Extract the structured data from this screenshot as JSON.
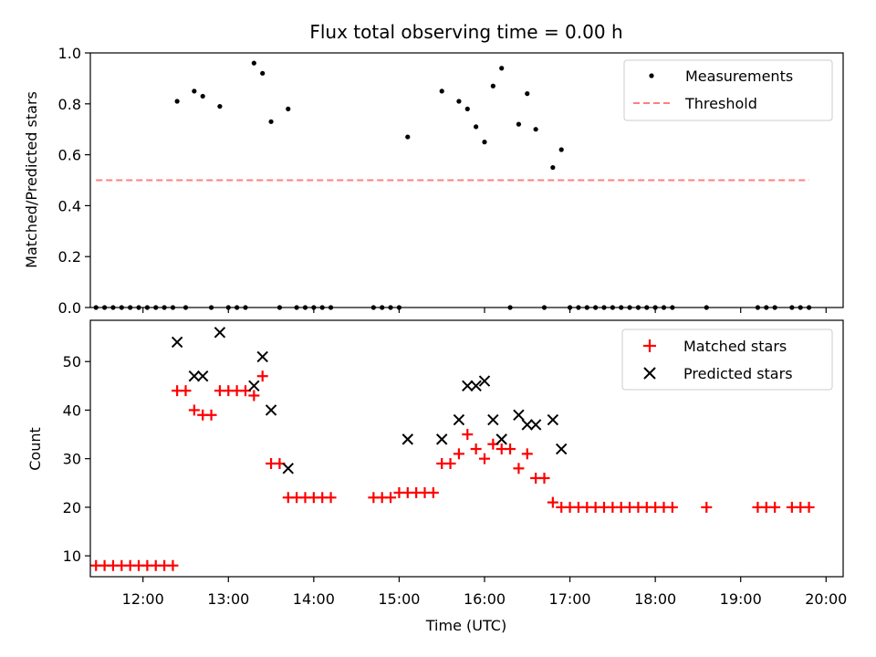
{
  "chart_data": [
    {
      "type": "scatter",
      "title": "Flux total observing time = 0.00 h",
      "xlabel": "",
      "ylabel": "Matched/Predicted stars",
      "xlim": [
        "11:23",
        "20:12"
      ],
      "ylim": [
        0,
        1.0
      ],
      "yticks": [
        0.0,
        0.2,
        0.4,
        0.6,
        0.8,
        1.0
      ],
      "ytick_labels": [
        "0.0",
        "0.2",
        "0.4",
        "0.6",
        "0.8",
        "1.0"
      ],
      "xticks": [
        "12:00",
        "13:00",
        "14:00",
        "15:00",
        "16:00",
        "17:00",
        "18:00",
        "19:00",
        "20:00"
      ],
      "legend_position": "top-right",
      "series": [
        {
          "name": "Measurements",
          "color": "#000000",
          "marker": "dot",
          "points": [
            [
              "11:27",
              0
            ],
            [
              "11:33",
              0
            ],
            [
              "11:39",
              0
            ],
            [
              "11:45",
              0
            ],
            [
              "11:51",
              0
            ],
            [
              "11:57",
              0
            ],
            [
              "12:03",
              0
            ],
            [
              "12:09",
              0
            ],
            [
              "12:15",
              0
            ],
            [
              "12:21",
              0
            ],
            [
              "12:24",
              0.81
            ],
            [
              "12:30",
              0
            ],
            [
              "12:36",
              0.85
            ],
            [
              "12:42",
              0.83
            ],
            [
              "12:48",
              0
            ],
            [
              "12:54",
              0.79
            ],
            [
              "13:00",
              0
            ],
            [
              "13:06",
              0
            ],
            [
              "13:12",
              0
            ],
            [
              "13:18",
              0.96
            ],
            [
              "13:24",
              0.92
            ],
            [
              "13:30",
              0.73
            ],
            [
              "13:36",
              0
            ],
            [
              "13:42",
              0.78
            ],
            [
              "13:48",
              0
            ],
            [
              "13:54",
              0
            ],
            [
              "14:00",
              0
            ],
            [
              "14:06",
              0
            ],
            [
              "14:12",
              0
            ],
            [
              "14:42",
              0
            ],
            [
              "14:48",
              0
            ],
            [
              "14:54",
              0
            ],
            [
              "15:00",
              0
            ],
            [
              "15:06",
              0.67
            ],
            [
              "15:30",
              0.85
            ],
            [
              "15:42",
              0.81
            ],
            [
              "15:48",
              0.78
            ],
            [
              "15:54",
              0.71
            ],
            [
              "16:00",
              0.65
            ],
            [
              "16:06",
              0.87
            ],
            [
              "16:12",
              0.94
            ],
            [
              "16:18",
              0
            ],
            [
              "16:24",
              0.72
            ],
            [
              "16:30",
              0.84
            ],
            [
              "16:36",
              0.7
            ],
            [
              "16:42",
              0
            ],
            [
              "16:48",
              0.55
            ],
            [
              "16:54",
              0.62
            ],
            [
              "17:00",
              0
            ],
            [
              "17:06",
              0
            ],
            [
              "17:12",
              0
            ],
            [
              "17:18",
              0
            ],
            [
              "17:24",
              0
            ],
            [
              "17:30",
              0
            ],
            [
              "17:36",
              0
            ],
            [
              "17:42",
              0
            ],
            [
              "17:48",
              0
            ],
            [
              "17:54",
              0
            ],
            [
              "18:00",
              0
            ],
            [
              "18:06",
              0
            ],
            [
              "18:12",
              0
            ],
            [
              "18:36",
              0
            ],
            [
              "19:12",
              0
            ],
            [
              "19:18",
              0
            ],
            [
              "19:24",
              0
            ],
            [
              "19:36",
              0
            ],
            [
              "19:42",
              0
            ],
            [
              "19:48",
              0
            ]
          ]
        },
        {
          "name": "Threshold",
          "color": "#ff7f7f",
          "line_style": "dashed",
          "points": [
            [
              "11:27",
              0.5
            ],
            [
              "19:48",
              0.5
            ]
          ]
        }
      ]
    },
    {
      "type": "scatter",
      "title": "",
      "xlabel": "Time (UTC)",
      "ylabel": "Count",
      "xlim": [
        "11:23",
        "20:12"
      ],
      "ylim": [
        5.7,
        58.5
      ],
      "yticks": [
        10,
        20,
        30,
        40,
        50
      ],
      "ytick_labels": [
        "10",
        "20",
        "30",
        "40",
        "50"
      ],
      "xticks": [
        "12:00",
        "13:00",
        "14:00",
        "15:00",
        "16:00",
        "17:00",
        "18:00",
        "19:00",
        "20:00"
      ],
      "xtick_labels": [
        "12:00",
        "13:00",
        "14:00",
        "15:00",
        "16:00",
        "17:00",
        "18:00",
        "19:00",
        "20:00"
      ],
      "legend_position": "top-right",
      "series": [
        {
          "name": "Matched stars",
          "color": "#ff0000",
          "marker": "plus",
          "points": [
            [
              "11:27",
              8
            ],
            [
              "11:33",
              8
            ],
            [
              "11:39",
              8
            ],
            [
              "11:45",
              8
            ],
            [
              "11:51",
              8
            ],
            [
              "11:57",
              8
            ],
            [
              "12:03",
              8
            ],
            [
              "12:09",
              8
            ],
            [
              "12:15",
              8
            ],
            [
              "12:21",
              8
            ],
            [
              "12:24",
              44
            ],
            [
              "12:30",
              44
            ],
            [
              "12:36",
              40
            ],
            [
              "12:42",
              39
            ],
            [
              "12:48",
              39
            ],
            [
              "12:54",
              44
            ],
            [
              "13:00",
              44
            ],
            [
              "13:06",
              44
            ],
            [
              "13:12",
              44
            ],
            [
              "13:18",
              43
            ],
            [
              "13:24",
              47
            ],
            [
              "13:30",
              29
            ],
            [
              "13:36",
              29
            ],
            [
              "13:42",
              22
            ],
            [
              "13:48",
              22
            ],
            [
              "13:54",
              22
            ],
            [
              "14:00",
              22
            ],
            [
              "14:06",
              22
            ],
            [
              "14:12",
              22
            ],
            [
              "14:42",
              22
            ],
            [
              "14:48",
              22
            ],
            [
              "14:54",
              22
            ],
            [
              "15:00",
              23
            ],
            [
              "15:06",
              23
            ],
            [
              "15:12",
              23
            ],
            [
              "15:18",
              23
            ],
            [
              "15:24",
              23
            ],
            [
              "15:30",
              29
            ],
            [
              "15:36",
              29
            ],
            [
              "15:42",
              31
            ],
            [
              "15:48",
              35
            ],
            [
              "15:54",
              32
            ],
            [
              "16:00",
              30
            ],
            [
              "16:06",
              33
            ],
            [
              "16:12",
              32
            ],
            [
              "16:18",
              32
            ],
            [
              "16:24",
              28
            ],
            [
              "16:30",
              31
            ],
            [
              "16:36",
              26
            ],
            [
              "16:42",
              26
            ],
            [
              "16:48",
              21
            ],
            [
              "16:54",
              20
            ],
            [
              "17:00",
              20
            ],
            [
              "17:06",
              20
            ],
            [
              "17:12",
              20
            ],
            [
              "17:18",
              20
            ],
            [
              "17:24",
              20
            ],
            [
              "17:30",
              20
            ],
            [
              "17:36",
              20
            ],
            [
              "17:42",
              20
            ],
            [
              "17:48",
              20
            ],
            [
              "17:54",
              20
            ],
            [
              "18:00",
              20
            ],
            [
              "18:06",
              20
            ],
            [
              "18:12",
              20
            ],
            [
              "18:36",
              20
            ],
            [
              "19:12",
              20
            ],
            [
              "19:18",
              20
            ],
            [
              "19:24",
              20
            ],
            [
              "19:36",
              20
            ],
            [
              "19:42",
              20
            ],
            [
              "19:48",
              20
            ]
          ]
        },
        {
          "name": "Predicted stars",
          "color": "#000000",
          "marker": "x",
          "points": [
            [
              "12:24",
              54
            ],
            [
              "12:36",
              47
            ],
            [
              "12:42",
              47
            ],
            [
              "12:54",
              56
            ],
            [
              "13:18",
              45
            ],
            [
              "13:24",
              51
            ],
            [
              "13:30",
              40
            ],
            [
              "13:42",
              28
            ],
            [
              "15:06",
              34
            ],
            [
              "15:30",
              34
            ],
            [
              "15:42",
              38
            ],
            [
              "15:48",
              45
            ],
            [
              "15:54",
              45
            ],
            [
              "16:00",
              46
            ],
            [
              "16:06",
              38
            ],
            [
              "16:12",
              34
            ],
            [
              "16:24",
              39
            ],
            [
              "16:30",
              37
            ],
            [
              "16:36",
              37
            ],
            [
              "16:48",
              38
            ],
            [
              "16:54",
              32
            ]
          ]
        }
      ]
    }
  ]
}
